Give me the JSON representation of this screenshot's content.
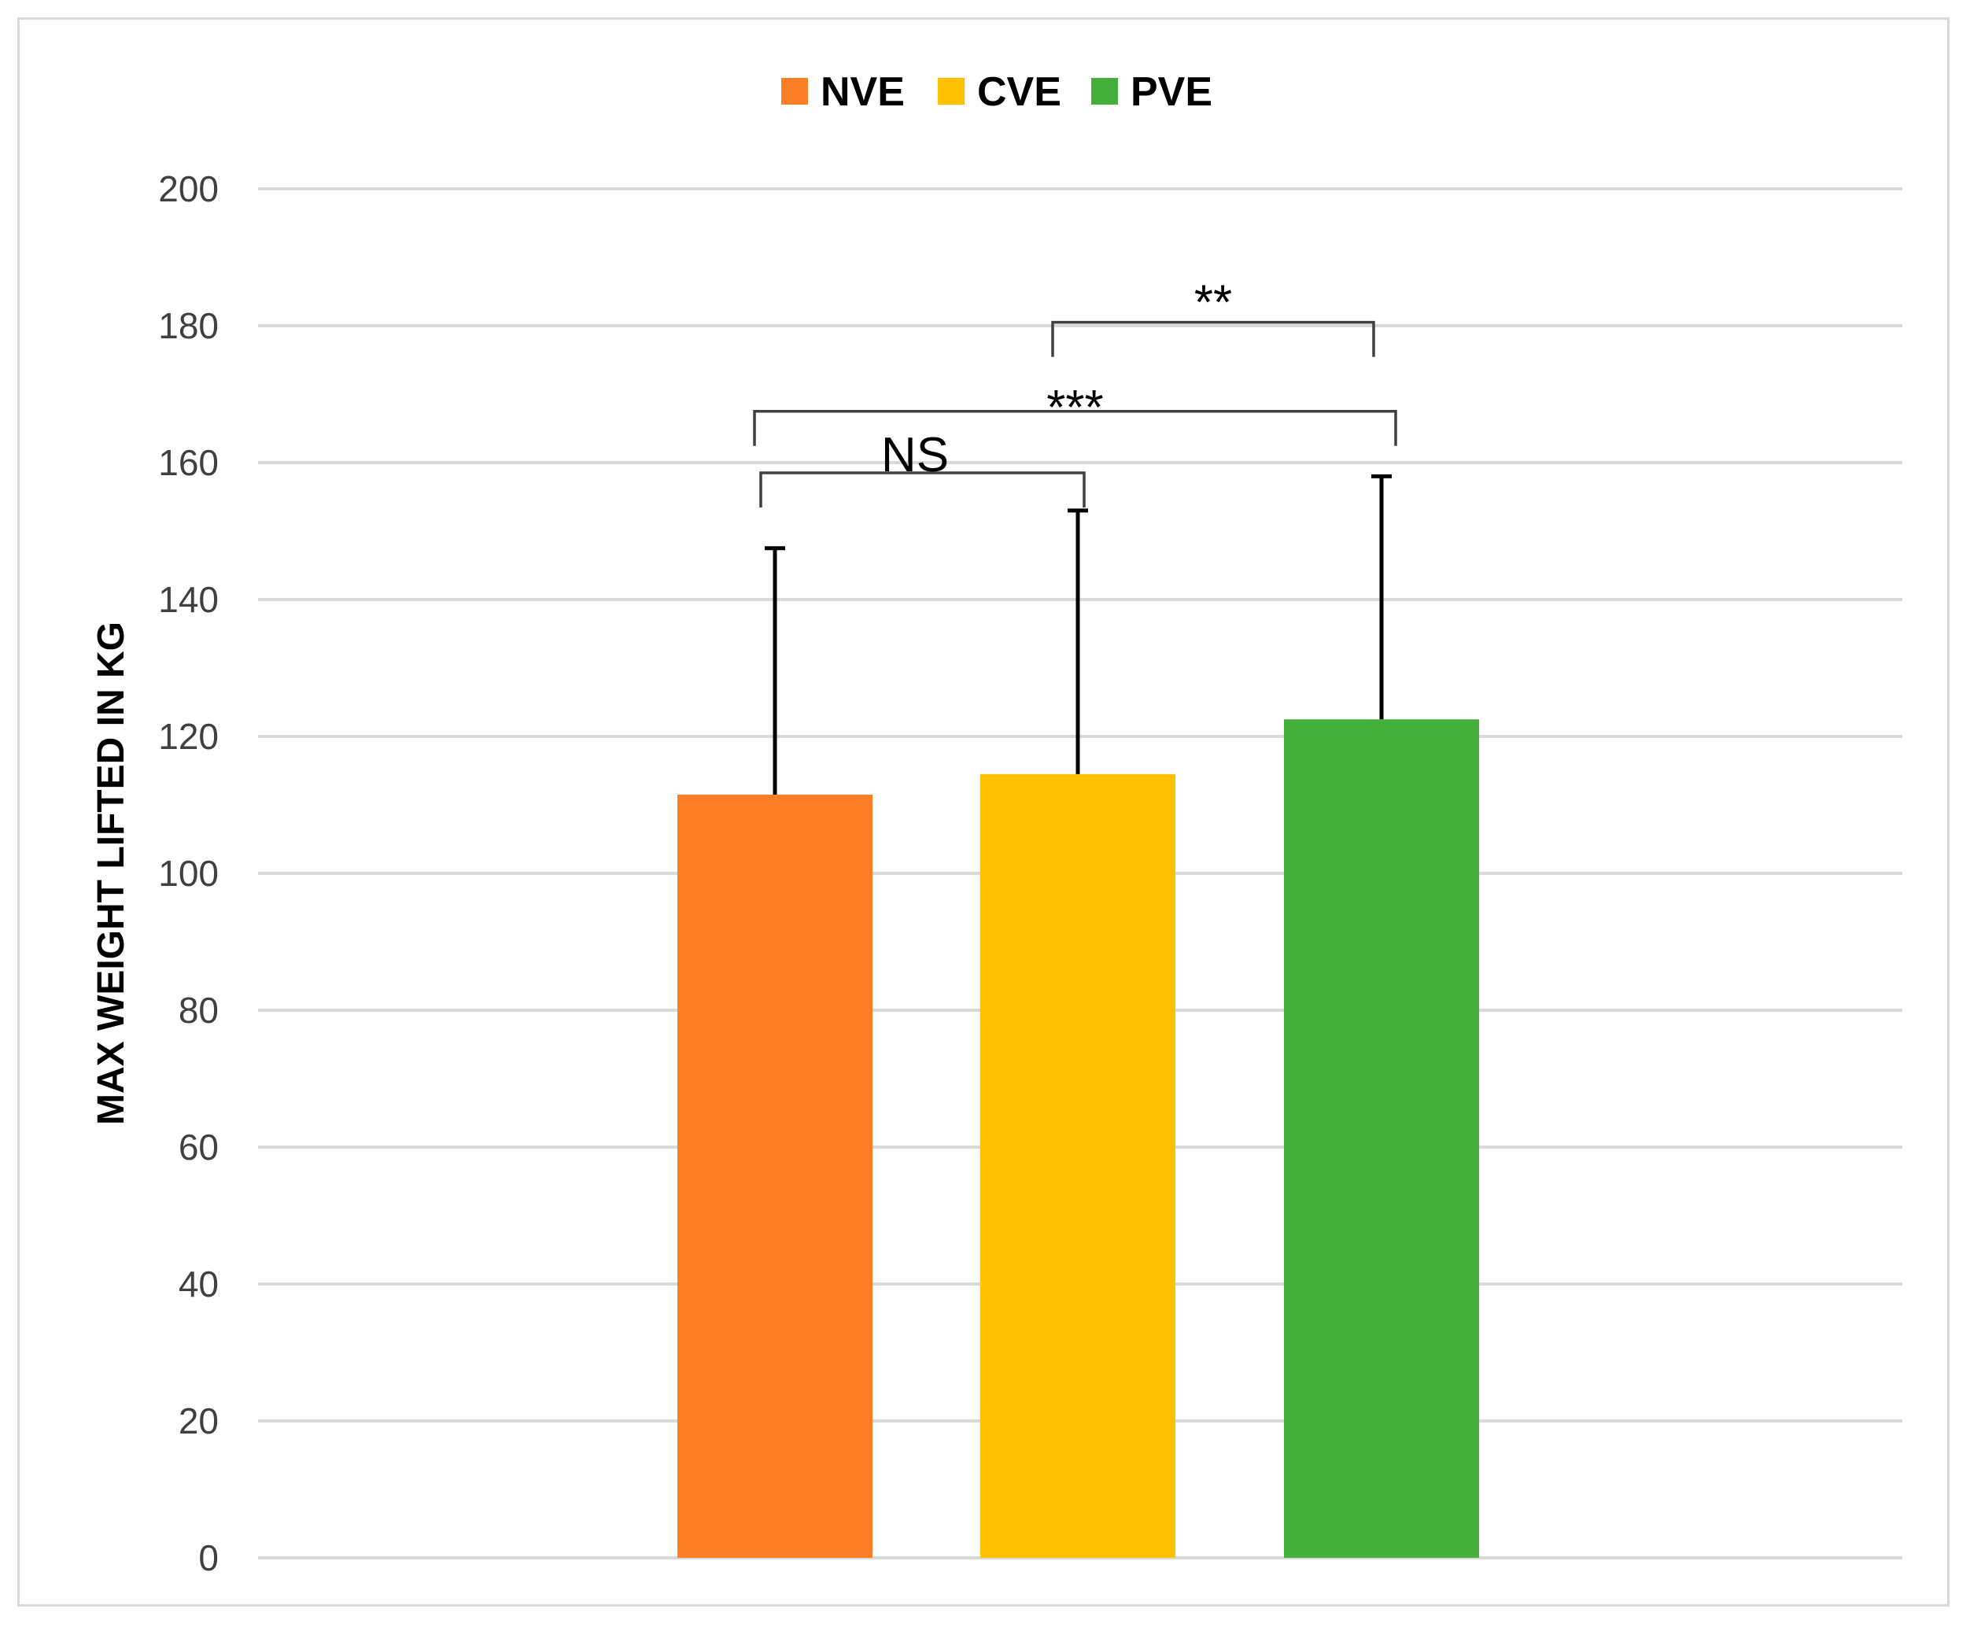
{
  "chart_data": {
    "type": "bar",
    "ylabel": "MAX WEIGHT LIFTED IN KG",
    "xlabel": "",
    "ylim": [
      0,
      200
    ],
    "yticks": [
      0,
      20,
      40,
      60,
      80,
      100,
      120,
      140,
      160,
      180,
      200
    ],
    "grid": true,
    "legend_position": "top",
    "series": [
      {
        "name": "NVE",
        "value": 111.5,
        "error": 36,
        "color": "#fd7e27"
      },
      {
        "name": "CVE",
        "value": 114.5,
        "error": 38.5,
        "color": "#fec000"
      },
      {
        "name": "PVE",
        "value": 122.5,
        "error": 35.5,
        "color": "#45af3c"
      }
    ],
    "annotations": [
      {
        "from": "NVE",
        "to": "CVE",
        "label": "NS",
        "y_level": 158.5
      },
      {
        "from": "NVE",
        "to": "PVE",
        "label": "***",
        "y_level": 167.5
      },
      {
        "from": "CVE",
        "to": "PVE",
        "label": "**",
        "y_level": 180.5
      }
    ]
  }
}
